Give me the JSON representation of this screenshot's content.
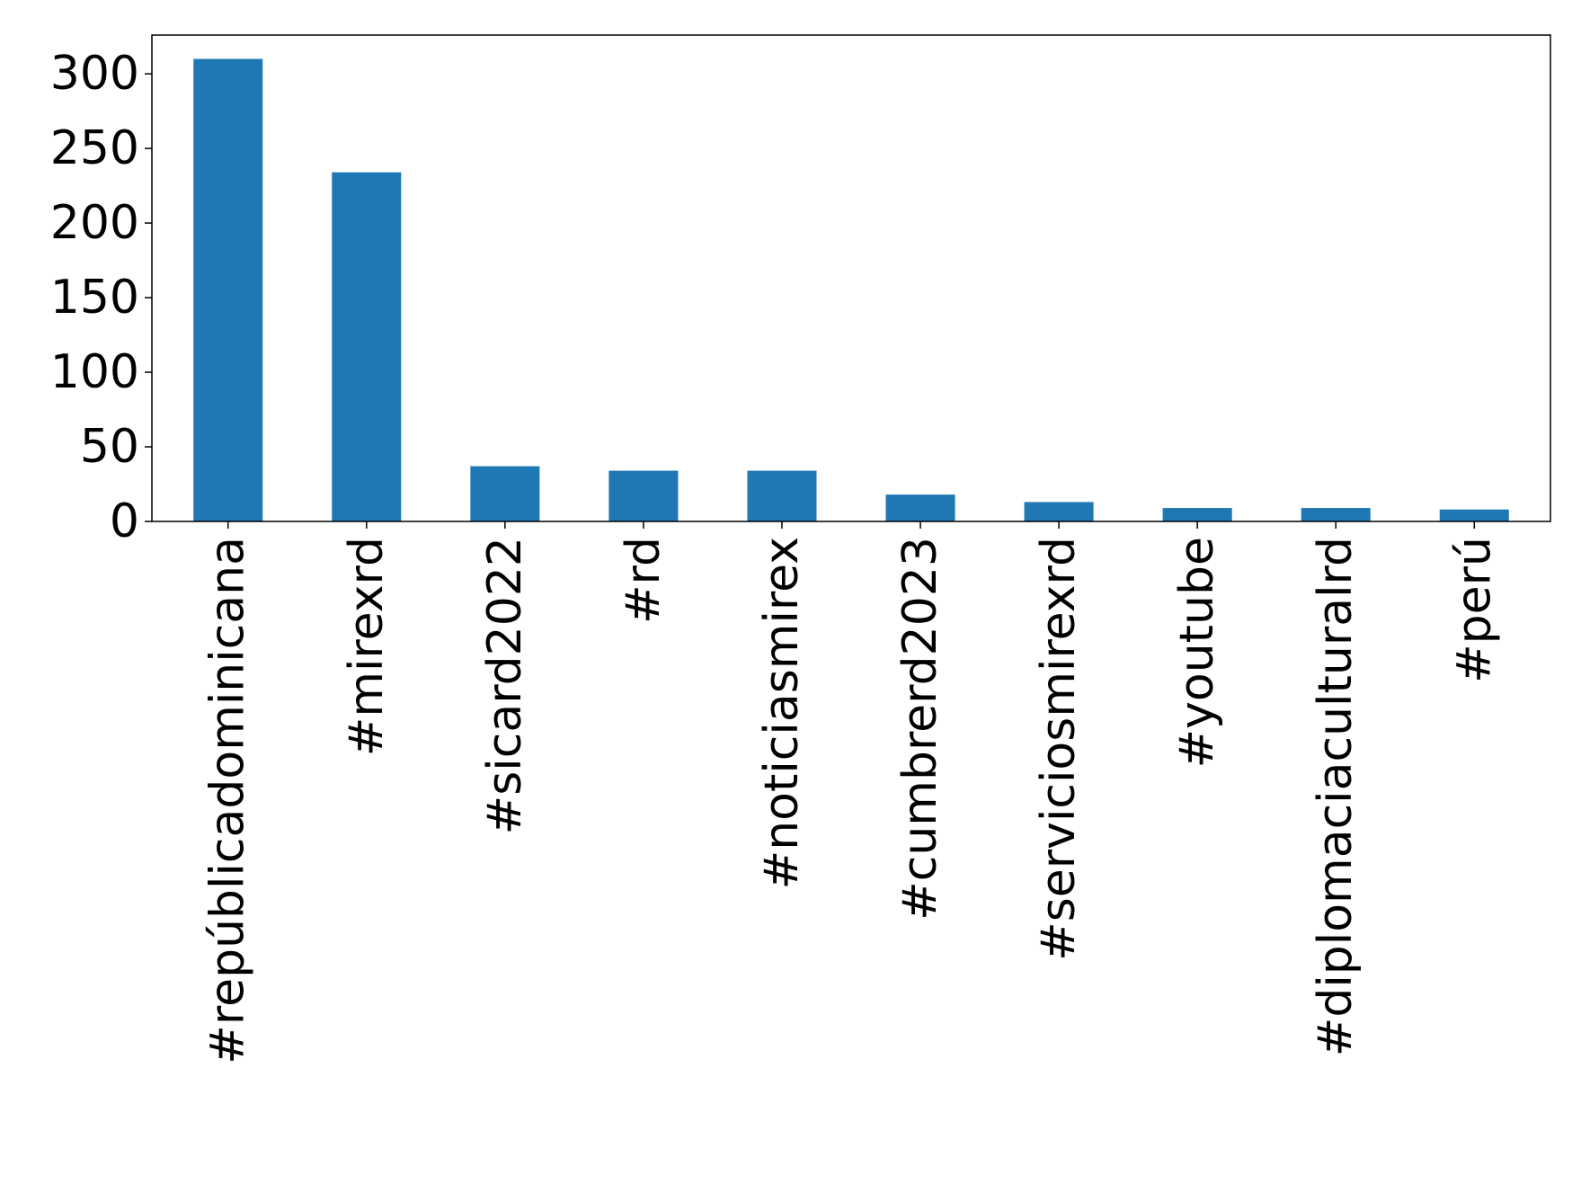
{
  "chart_data": {
    "type": "bar",
    "title": "",
    "xlabel": "",
    "ylabel": "",
    "categories": [
      "#repúblicadominicana",
      "#mirexrd",
      "#sicard2022",
      "#rd",
      "#noticiasmirex",
      "#cumbrerd2023",
      "#serviciosmirexrd",
      "#youtube",
      "#diplomaciaculturalrd",
      "#perú"
    ],
    "values": [
      310,
      234,
      37,
      34,
      34,
      18,
      13,
      9,
      9,
      8
    ],
    "ylim": [
      0,
      326
    ],
    "yticks": [
      0,
      50,
      100,
      150,
      200,
      250,
      300
    ],
    "grid": false,
    "legend": "none",
    "bar_color": "#1f77b4"
  }
}
